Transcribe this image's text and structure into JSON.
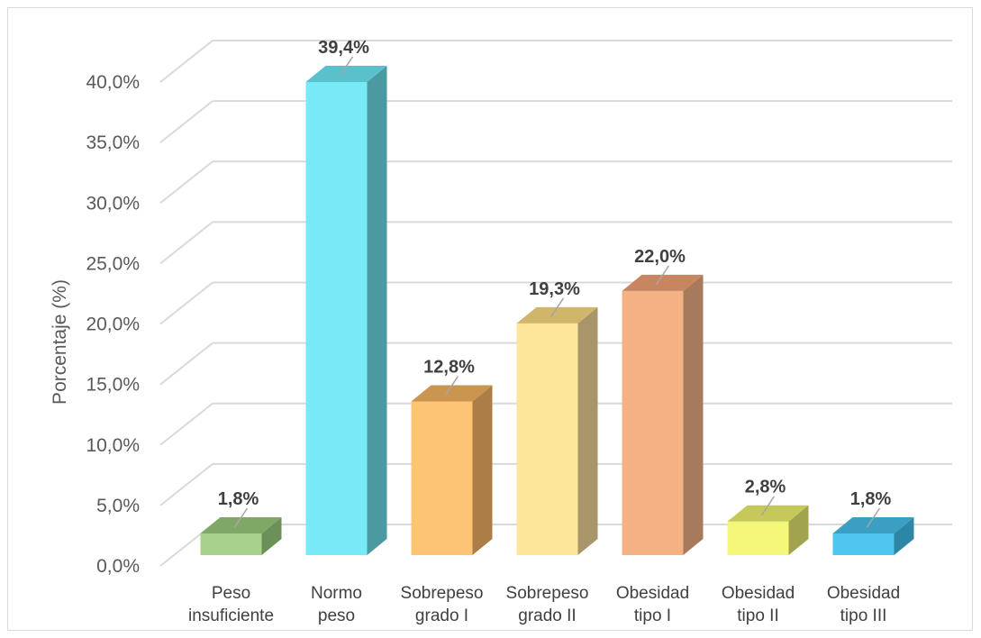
{
  "chart_data": {
    "type": "bar",
    "style": "3d-column",
    "categories": [
      [
        "Peso",
        "insuficiente"
      ],
      [
        "Normo",
        "peso"
      ],
      [
        "Sobrepeso",
        "grado I"
      ],
      [
        "Sobrepeso",
        "grado II"
      ],
      [
        "Obesidad",
        "tipo I"
      ],
      [
        "Obesidad",
        "tipo II"
      ],
      [
        "Obesidad",
        "tipo III"
      ]
    ],
    "values": [
      1.8,
      39.4,
      12.8,
      19.3,
      22.0,
      2.8,
      1.8
    ],
    "data_labels": [
      "1,8%",
      "39,4%",
      "12,8%",
      "19,3%",
      "22,0%",
      "2,8%",
      "1,8%"
    ],
    "ylabel": "Porcentaje (%)",
    "ylim": [
      0,
      40
    ],
    "yticks": [
      "0,0%",
      "5,0%",
      "10,0%",
      "15,0%",
      "20,0%",
      "25,0%",
      "30,0%",
      "35,0%",
      "40,0%"
    ],
    "grid": true,
    "legend": "none",
    "colors": [
      {
        "front": "#a9d18e",
        "top": "#7fa866",
        "side": "#6d8f58"
      },
      {
        "front": "#76ebf7",
        "top": "#5ac0cb",
        "side": "#4a9aa1"
      },
      {
        "front": "#fdc473",
        "top": "#c99550",
        "side": "#ab7e48"
      },
      {
        "front": "#fde599",
        "top": "#cfb66a",
        "side": "#a8966a"
      },
      {
        "front": "#f4b183",
        "top": "#c88660",
        "side": "#a77a5c"
      },
      {
        "front": "#f4f77a",
        "top": "#c6c95a",
        "side": "#a2a34f"
      },
      {
        "front": "#4ec6ee",
        "top": "#3a9fc2",
        "side": "#2e86a6"
      }
    ]
  }
}
